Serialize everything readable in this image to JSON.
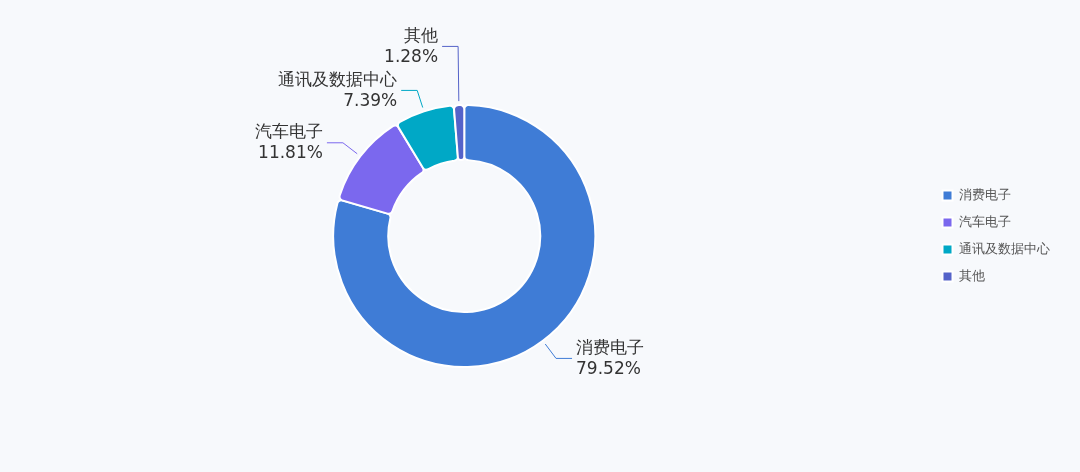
{
  "chart_data": {
    "type": "donut",
    "categories": [
      "消费电子",
      "汽车电子",
      "通讯及数据中心",
      "其他"
    ],
    "values": [
      79.52,
      11.81,
      7.39,
      1.28
    ],
    "colors": [
      "#3f7cd6",
      "#7b68ee",
      "#00a8c6",
      "#5563c9"
    ],
    "value_labels": [
      "79.52%",
      "11.81%",
      "7.39%",
      "1.28%"
    ],
    "legend": "right"
  }
}
